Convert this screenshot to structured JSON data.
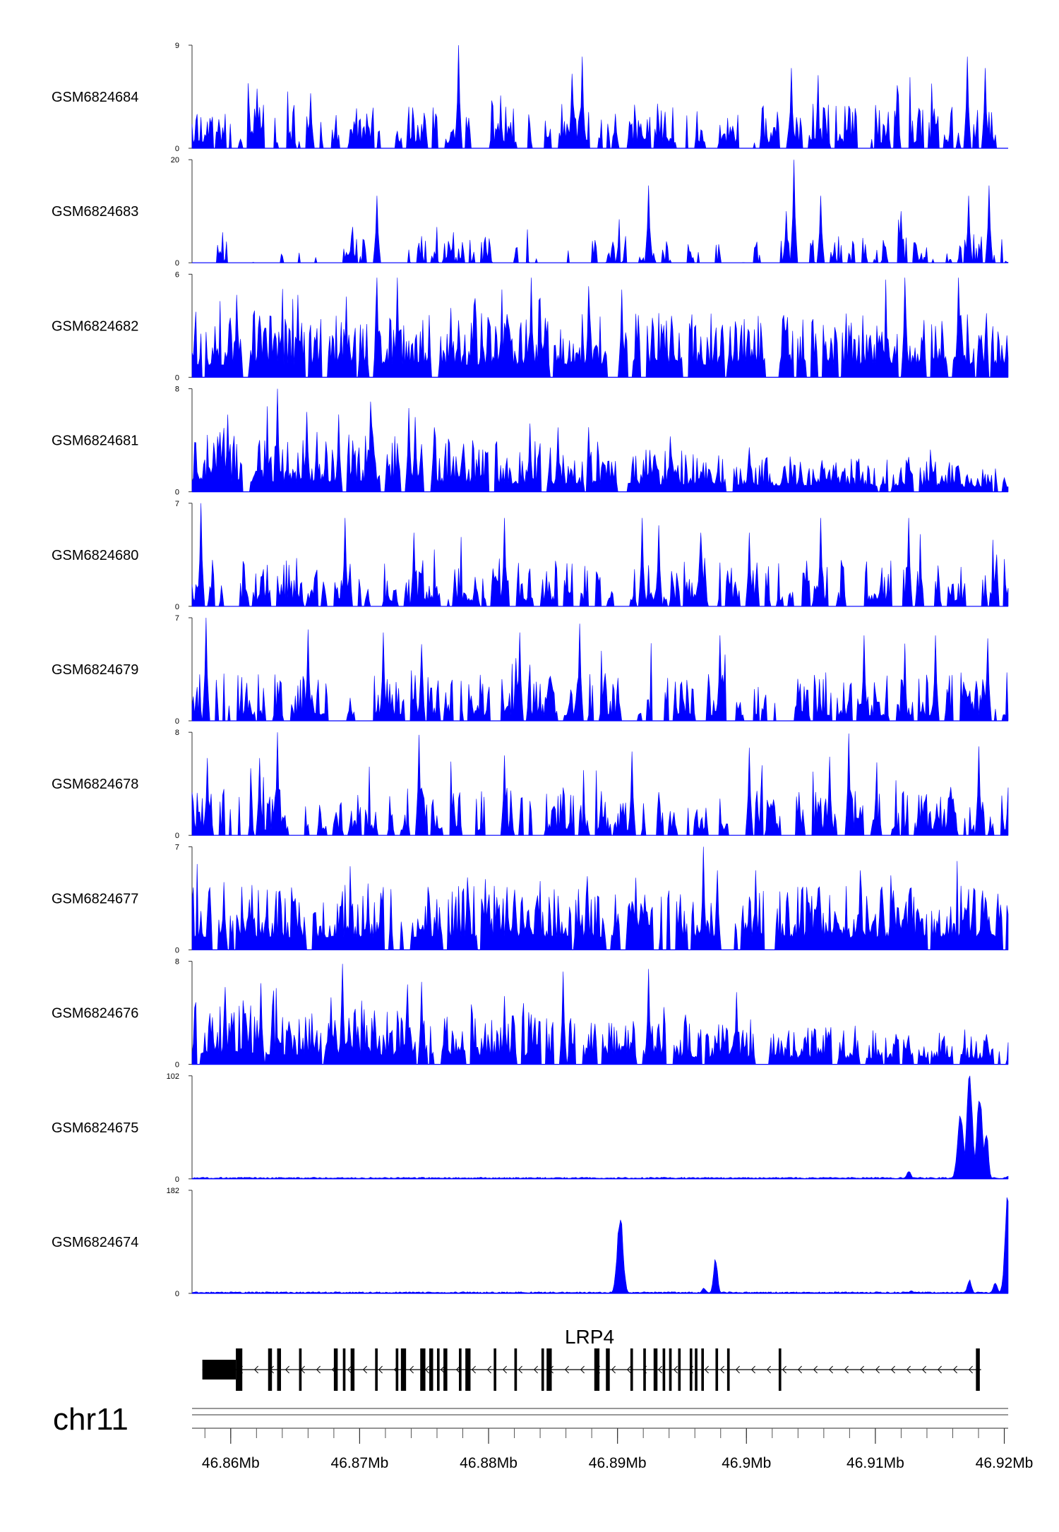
{
  "chart_data": {
    "type": "area",
    "chromosome": "chr11",
    "region": [
      46.857,
      46.9203
    ],
    "region_units": "Mb",
    "series_color": "#0000ff",
    "grid": false,
    "tracks": [
      {
        "name": "GSM6824684",
        "ymax": "9",
        "ymin": "0",
        "ylim": [
          0,
          9
        ],
        "style": "sparse-low",
        "peaks": [
          [
            46.8777,
            9
          ],
          [
            46.8865,
            6.5
          ],
          [
            46.8873,
            8
          ],
          [
            46.9035,
            7
          ],
          [
            46.9171,
            8
          ],
          [
            46.9185,
            7
          ],
          [
            46.9117,
            5.5
          ],
          [
            46.8898,
            3
          ],
          [
            46.862,
            5.2
          ],
          [
            46.8662,
            4.8
          ]
        ]
      },
      {
        "name": "GSM6824683",
        "ymax": "20",
        "ymin": "0",
        "ylim": [
          0,
          20
        ],
        "style": "gappy",
        "peaks": [
          [
            46.9037,
            20
          ],
          [
            46.8713,
            13
          ],
          [
            46.8924,
            15
          ],
          [
            46.9058,
            13
          ],
          [
            46.912,
            10
          ],
          [
            46.9172,
            13
          ],
          [
            46.9188,
            15
          ],
          [
            46.9031,
            10
          ]
        ]
      },
      {
        "name": "GSM6824682",
        "ymax": "6",
        "ymin": "0",
        "ylim": [
          0,
          6
        ],
        "style": "dense-mid",
        "peaks": [
          [
            46.8713,
            5.8
          ],
          [
            46.8729,
            5.8
          ],
          [
            46.8833,
            5.8
          ],
          [
            46.9123,
            5.8
          ],
          [
            46.9164,
            5.8
          ],
          [
            46.8878,
            5.3
          ],
          [
            46.8903,
            5.1
          ],
          [
            46.884,
            4.6
          ],
          [
            46.8652,
            4.8
          ],
          [
            46.8605,
            4.8
          ]
        ]
      },
      {
        "name": "GSM6824681",
        "ymax": "8",
        "ymin": "0",
        "ylim": [
          0,
          8
        ],
        "style": "dense-decay",
        "peaks": [
          [
            46.8636,
            8
          ],
          [
            46.8708,
            7
          ],
          [
            46.8684,
            6
          ],
          [
            46.8659,
            6.2
          ],
          [
            46.8738,
            6.5
          ],
          [
            46.8743,
            5.8
          ],
          [
            46.8758,
            5.0
          ],
          [
            46.8854,
            5.0
          ],
          [
            46.8832,
            5.3
          ],
          [
            46.8941,
            4.3
          ]
        ]
      },
      {
        "name": "GSM6824680",
        "ymax": "7",
        "ymin": "0",
        "ylim": [
          0,
          7
        ],
        "style": "sparse-mid",
        "peaks": [
          [
            46.8577,
            7
          ],
          [
            46.8689,
            6
          ],
          [
            46.8812,
            6
          ],
          [
            46.8919,
            6
          ],
          [
            46.8932,
            5.5
          ],
          [
            46.9058,
            6
          ],
          [
            46.9126,
            6
          ],
          [
            46.9002,
            5
          ],
          [
            46.8742,
            5
          ],
          [
            46.8965,
            5
          ]
        ]
      },
      {
        "name": "GSM6824679",
        "ymax": "7",
        "ymin": "0",
        "ylim": [
          0,
          7
        ],
        "style": "sparse-mid",
        "peaks": [
          [
            46.8581,
            7
          ],
          [
            46.866,
            6.2
          ],
          [
            46.8718,
            6
          ],
          [
            46.8824,
            6
          ],
          [
            46.8871,
            6.6
          ],
          [
            46.8979,
            5.8
          ],
          [
            46.9091,
            5.8
          ],
          [
            46.9147,
            5.8
          ],
          [
            46.9187,
            5.6
          ],
          [
            46.8748,
            5.2
          ]
        ]
      },
      {
        "name": "GSM6824678",
        "ymax": "8",
        "ymin": "0",
        "ylim": [
          0,
          8
        ],
        "style": "sparse-mid",
        "peaks": [
          [
            46.8636,
            8
          ],
          [
            46.8746,
            7.8
          ],
          [
            46.8582,
            6
          ],
          [
            46.8911,
            6.5
          ],
          [
            46.9002,
            6.8
          ],
          [
            46.9079,
            7.9
          ],
          [
            46.918,
            6.9
          ],
          [
            46.8622,
            6
          ],
          [
            46.8812,
            6.2
          ],
          [
            46.9065,
            6.1
          ]
        ]
      },
      {
        "name": "GSM6824677",
        "ymax": "7",
        "ymin": "0",
        "ylim": [
          0,
          7
        ],
        "style": "dense-mid",
        "peaks": [
          [
            46.8967,
            7
          ],
          [
            46.8877,
            5
          ],
          [
            46.8914,
            4.9
          ],
          [
            46.8977,
            5.4
          ],
          [
            46.9007,
            5.4
          ],
          [
            46.9088,
            5.4
          ],
          [
            46.8706,
            4.5
          ],
          [
            46.8797,
            4.8
          ],
          [
            46.8616,
            4.4
          ],
          [
            46.8595,
            4.6
          ]
        ]
      },
      {
        "name": "GSM6824676",
        "ymax": "8",
        "ymin": "0",
        "ylim": [
          0,
          8
        ],
        "style": "dense-decay",
        "peaks": [
          [
            46.8687,
            7.8
          ],
          [
            46.8858,
            7.2
          ],
          [
            46.8924,
            7.4
          ],
          [
            46.8748,
            6.4
          ],
          [
            46.8737,
            6.2
          ],
          [
            46.8596,
            6.0
          ],
          [
            46.8623,
            6.3
          ],
          [
            46.8678,
            5.2
          ],
          [
            46.8992,
            5.6
          ],
          [
            46.8812,
            5.3
          ]
        ]
      },
      {
        "name": "GSM6824675",
        "ymax": "102",
        "ymin": "0",
        "ylim": [
          0,
          102
        ],
        "style": "baseline",
        "peaks": [
          [
            46.9173,
            102
          ],
          [
            46.9181,
            85
          ],
          [
            46.9166,
            65
          ],
          [
            46.9186,
            50
          ],
          [
            46.9126,
            8
          ],
          [
            46.9203,
            3
          ]
        ]
      },
      {
        "name": "GSM6824674",
        "ymax": "182",
        "ymin": "0",
        "ylim": [
          0,
          182
        ],
        "style": "baseline",
        "peaks": [
          [
            46.8902,
            140
          ],
          [
            46.8976,
            65
          ],
          [
            46.8967,
            10
          ],
          [
            46.9193,
            20
          ],
          [
            46.9173,
            25
          ],
          [
            46.9203,
            182
          ],
          [
            46.9128,
            5
          ]
        ]
      }
    ],
    "gene": {
      "name": "LRP4",
      "strand": "-",
      "start": 46.8578,
      "end": 46.9182,
      "exons": [
        [
          46.8578,
          46.8604,
          "utr"
        ],
        [
          46.8604,
          46.8609,
          "cds"
        ],
        [
          46.8629,
          46.8632,
          "cds"
        ],
        [
          46.8636,
          46.8639,
          "cds"
        ],
        [
          46.8653,
          46.8655,
          "cds"
        ],
        [
          46.868,
          46.8683,
          "cds"
        ],
        [
          46.8687,
          46.8689,
          "cds"
        ],
        [
          46.8693,
          46.8696,
          "cds"
        ],
        [
          46.8712,
          46.8714,
          "cds"
        ],
        [
          46.8728,
          46.873,
          "cds"
        ],
        [
          46.8732,
          46.8736,
          "cds"
        ],
        [
          46.8747,
          46.8751,
          "cds"
        ],
        [
          46.8754,
          46.8757,
          "cds"
        ],
        [
          46.876,
          46.8762,
          "cds"
        ],
        [
          46.8765,
          46.8768,
          "cds"
        ],
        [
          46.8777,
          46.8779,
          "cds"
        ],
        [
          46.8782,
          46.8786,
          "cds"
        ],
        [
          46.8804,
          46.8806,
          "cds"
        ],
        [
          46.882,
          46.8822,
          "cds"
        ],
        [
          46.8841,
          46.8843,
          "cds"
        ],
        [
          46.8845,
          46.8849,
          "cds"
        ],
        [
          46.8882,
          46.8886,
          "cds"
        ],
        [
          46.8891,
          46.8894,
          "cds"
        ],
        [
          46.891,
          46.8912,
          "cds"
        ],
        [
          46.892,
          46.8922,
          "cds"
        ],
        [
          46.8928,
          46.8931,
          "cds"
        ],
        [
          46.8935,
          46.8937,
          "cds"
        ],
        [
          46.894,
          46.8942,
          "cds"
        ],
        [
          46.8947,
          46.8949,
          "cds"
        ],
        [
          46.8956,
          46.8958,
          "cds"
        ],
        [
          46.896,
          46.8962,
          "cds"
        ],
        [
          46.8965,
          46.8967,
          "cds"
        ],
        [
          46.8976,
          46.8978,
          "cds"
        ],
        [
          46.8985,
          46.8987,
          "cds"
        ],
        [
          46.9025,
          46.9027,
          "cds"
        ],
        [
          46.9178,
          46.9181,
          "cds"
        ]
      ]
    },
    "xaxis": {
      "ticks": [
        46.86,
        46.87,
        46.88,
        46.89,
        46.9,
        46.91,
        46.92
      ],
      "tick_labels": [
        "46.86Mb",
        "46.87Mb",
        "46.88Mb",
        "46.89Mb",
        "46.9Mb",
        "46.91Mb",
        "46.92Mb"
      ],
      "minor_step": 0.002
    }
  }
}
